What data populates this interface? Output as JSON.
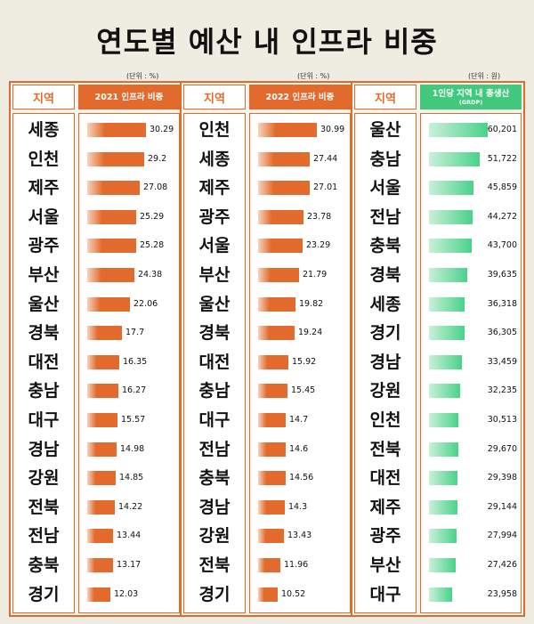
{
  "title": "연도별 예산 내 인프라 비중",
  "chart_data": [
    {
      "type": "bar",
      "region_header": "지역",
      "metric_header": "2021 인프라 비중",
      "unit": "(단위 : %)",
      "categories": [
        "세종",
        "인천",
        "제주",
        "서울",
        "광주",
        "부산",
        "울산",
        "경북",
        "대전",
        "충남",
        "대구",
        "경남",
        "강원",
        "전북",
        "전남",
        "충북",
        "경기"
      ],
      "values": [
        30.29,
        29.2,
        27.08,
        25.29,
        25.28,
        24.38,
        22.06,
        17.7,
        16.35,
        16.27,
        15.57,
        14.98,
        14.85,
        14.22,
        13.44,
        13.17,
        12.03
      ],
      "value_labels": [
        "30.29",
        "29.2",
        "27.08",
        "25.29",
        "25.28",
        "24.38",
        "22.06",
        "17.7",
        "16.35",
        "16.27",
        "15.57",
        "14.98",
        "14.85",
        "14.22",
        "13.44",
        "13.17",
        "12.03"
      ],
      "color": "#e26a2c"
    },
    {
      "type": "bar",
      "region_header": "지역",
      "metric_header": "2022 인프라 비중",
      "unit": "(단위 : %)",
      "categories": [
        "인천",
        "세종",
        "제주",
        "광주",
        "서울",
        "부산",
        "울산",
        "경북",
        "대전",
        "충남",
        "대구",
        "전남",
        "충북",
        "경남",
        "강원",
        "전북",
        "경기"
      ],
      "values": [
        30.99,
        27.44,
        27.01,
        23.78,
        23.29,
        21.79,
        19.82,
        19.24,
        15.92,
        15.45,
        14.7,
        14.6,
        14.56,
        14.3,
        13.43,
        11.96,
        10.52
      ],
      "value_labels": [
        "30.99",
        "27.44",
        "27.01",
        "23.78",
        "23.29",
        "21.79",
        "19.82",
        "19.24",
        "15.92",
        "15.45",
        "14.7",
        "14.6",
        "14.56",
        "14.3",
        "13.43",
        "11.96",
        "10.52"
      ],
      "color": "#e26a2c"
    },
    {
      "type": "bar",
      "region_header": "지역",
      "metric_header": "1인당 지역 내 총생산",
      "metric_subheader": "(GRDP)",
      "unit": "(단위 : 원)",
      "categories": [
        "울산",
        "충남",
        "서울",
        "전남",
        "충북",
        "경북",
        "세종",
        "경기",
        "경남",
        "강원",
        "인천",
        "전북",
        "대전",
        "제주",
        "광주",
        "부산",
        "대구"
      ],
      "values": [
        60201,
        51722,
        45859,
        44272,
        43700,
        39635,
        36318,
        36305,
        33459,
        32235,
        30513,
        29670,
        29398,
        29144,
        27994,
        27426,
        23958
      ],
      "value_labels": [
        "60,201",
        "51,722",
        "45,859",
        "44,272",
        "43,700",
        "39,635",
        "36,318",
        "36,305",
        "33,459",
        "32,235",
        "30,513",
        "29,670",
        "29,398",
        "29,144",
        "27,994",
        "27,426",
        "23,958"
      ],
      "color": "#49d28a"
    }
  ]
}
